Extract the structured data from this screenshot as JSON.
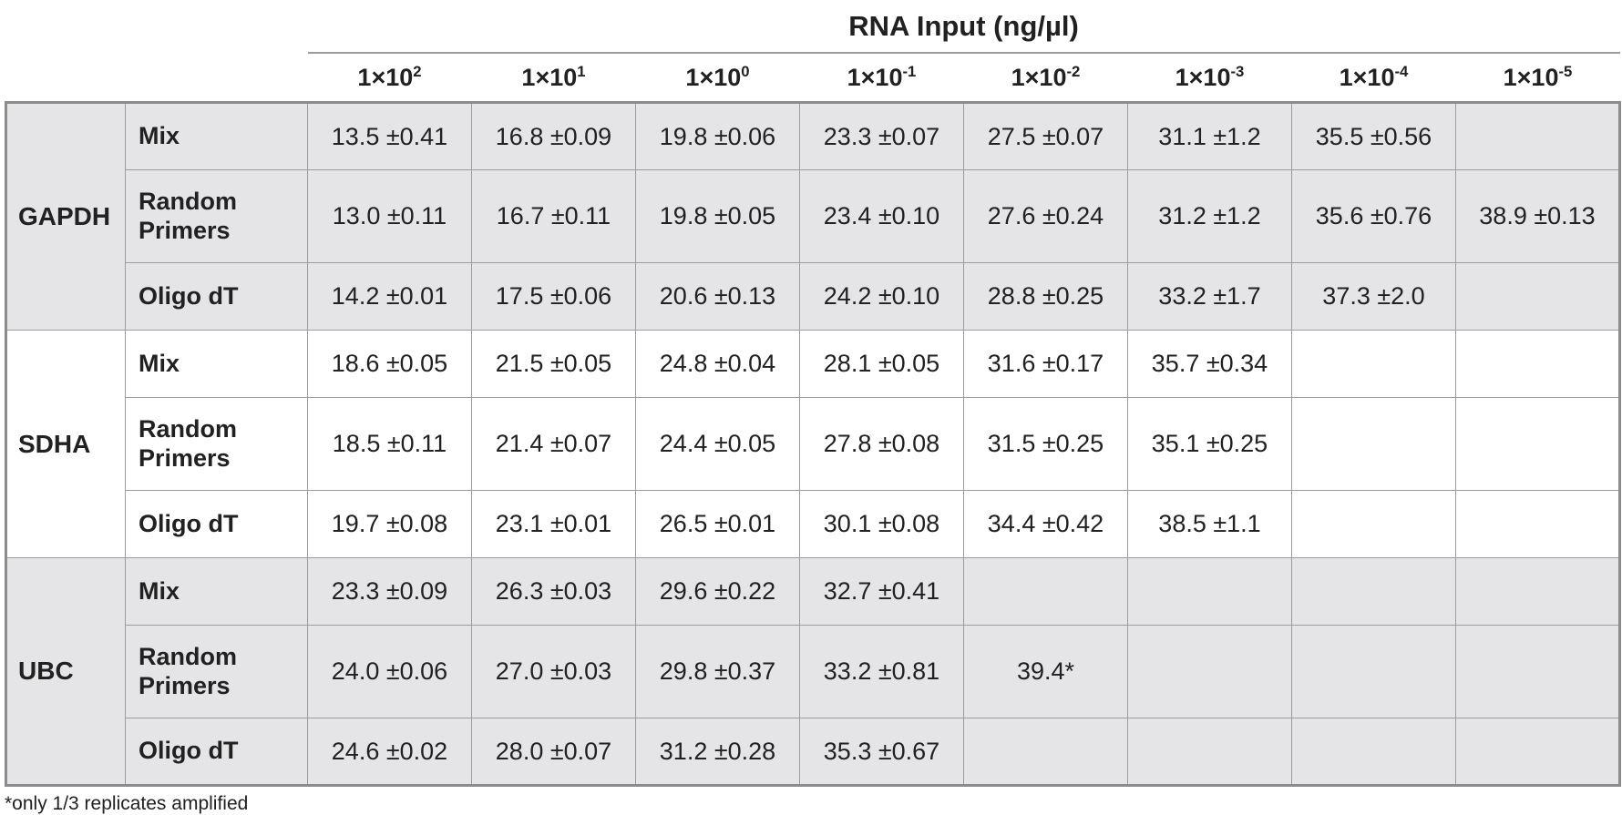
{
  "chart_data": {
    "type": "table",
    "title": "RNA Input (ng/µl)",
    "columns": [
      {
        "base": "1×10",
        "exp": "2"
      },
      {
        "base": "1×10",
        "exp": "1"
      },
      {
        "base": "1×10",
        "exp": "0"
      },
      {
        "base": "1×10",
        "exp": "-1"
      },
      {
        "base": "1×10",
        "exp": "-2"
      },
      {
        "base": "1×10",
        "exp": "-3"
      },
      {
        "base": "1×10",
        "exp": "-4"
      },
      {
        "base": "1×10",
        "exp": "-5"
      }
    ],
    "groups": [
      {
        "gene": "GAPDH",
        "shaded": true,
        "rows": [
          {
            "primer": "Mix",
            "values": [
              "13.5 ±0.41",
              "16.8 ±0.09",
              "19.8 ±0.06",
              "23.3 ±0.07",
              "27.5 ±0.07",
              "31.1 ±1.2",
              "35.5 ±0.56",
              ""
            ]
          },
          {
            "primer": "Random Primers",
            "values": [
              "13.0 ±0.11",
              "16.7 ±0.11",
              "19.8 ±0.05",
              "23.4 ±0.10",
              "27.6 ±0.24",
              "31.2 ±1.2",
              "35.6 ±0.76",
              "38.9 ±0.13"
            ]
          },
          {
            "primer": "Oligo dT",
            "values": [
              "14.2 ±0.01",
              "17.5 ±0.06",
              "20.6 ±0.13",
              "24.2 ±0.10",
              "28.8 ±0.25",
              "33.2 ±1.7",
              "37.3 ±2.0",
              ""
            ]
          }
        ]
      },
      {
        "gene": "SDHA",
        "shaded": false,
        "rows": [
          {
            "primer": "Mix",
            "values": [
              "18.6 ±0.05",
              "21.5 ±0.05",
              "24.8 ±0.04",
              "28.1 ±0.05",
              "31.6 ±0.17",
              "35.7 ±0.34",
              "",
              ""
            ]
          },
          {
            "primer": "Random Primers",
            "values": [
              "18.5 ±0.11",
              "21.4 ±0.07",
              "24.4 ±0.05",
              "27.8 ±0.08",
              "31.5 ±0.25",
              "35.1 ±0.25",
              "",
              ""
            ]
          },
          {
            "primer": "Oligo dT",
            "values": [
              "19.7 ±0.08",
              "23.1 ±0.01",
              "26.5 ±0.01",
              "30.1 ±0.08",
              "34.4 ±0.42",
              "38.5 ±1.1",
              "",
              ""
            ]
          }
        ]
      },
      {
        "gene": "UBC",
        "shaded": true,
        "rows": [
          {
            "primer": "Mix",
            "values": [
              "23.3 ±0.09",
              "26.3 ±0.03",
              "29.6 ±0.22",
              "32.7 ±0.41",
              "",
              "",
              "",
              ""
            ]
          },
          {
            "primer": "Random Primers",
            "values": [
              "24.0 ±0.06",
              "27.0 ±0.03",
              "29.8 ±0.37",
              "33.2 ±0.81",
              "39.4*",
              "",
              "",
              ""
            ]
          },
          {
            "primer": "Oligo dT",
            "values": [
              "24.6 ±0.02",
              "28.0 ±0.07",
              "31.2 ±0.28",
              "35.3 ±0.67",
              "",
              "",
              "",
              ""
            ]
          }
        ]
      }
    ],
    "footnote": "*only 1/3 replicates amplified"
  },
  "colors": {
    "shaded_row_bg": "#e5e5e7",
    "cell_border": "#9c9c9c",
    "outer_border": "#8c8c8c",
    "text": "#212121",
    "background": "#ffffff"
  }
}
